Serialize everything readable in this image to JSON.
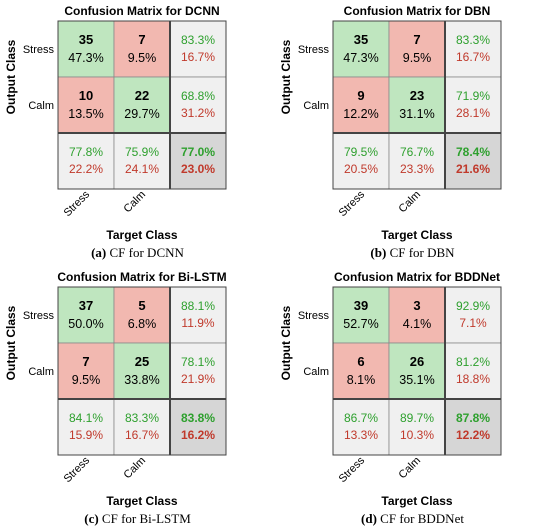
{
  "chart_data": [
    {
      "type": "heatmap",
      "title": "Confusion Matrix for DCNN",
      "xlabel": "Target Class",
      "ylabel": "Output Class",
      "classes": [
        "Stress",
        "Calm"
      ],
      "counts": [
        [
          35,
          7
        ],
        [
          10,
          22
        ]
      ],
      "percents": [
        [
          "47.3%",
          "9.5%"
        ],
        [
          "13.5%",
          "29.7%"
        ]
      ],
      "row_summary": [
        [
          "83.3%",
          "16.7%"
        ],
        [
          "68.8%",
          "31.2%"
        ]
      ],
      "col_summary": [
        [
          "77.8%",
          "22.2%"
        ],
        [
          "75.9%",
          "24.1%"
        ]
      ],
      "overall": [
        "77.0%",
        "23.0%"
      ],
      "caption_letter": "(a)",
      "caption_text": " CF for DCNN"
    },
    {
      "type": "heatmap",
      "title": "Confusion Matrix for DBN",
      "xlabel": "Target Class",
      "ylabel": "Output Class",
      "classes": [
        "Stress",
        "Calm"
      ],
      "counts": [
        [
          35,
          7
        ],
        [
          9,
          23
        ]
      ],
      "percents": [
        [
          "47.3%",
          "9.5%"
        ],
        [
          "12.2%",
          "31.1%"
        ]
      ],
      "row_summary": [
        [
          "83.3%",
          "16.7%"
        ],
        [
          "71.9%",
          "28.1%"
        ]
      ],
      "col_summary": [
        [
          "79.5%",
          "20.5%"
        ],
        [
          "76.7%",
          "23.3%"
        ]
      ],
      "overall": [
        "78.4%",
        "21.6%"
      ],
      "caption_letter": "(b)",
      "caption_text": " CF for DBN"
    },
    {
      "type": "heatmap",
      "title": "Confusion Matrix for Bi-LSTM",
      "xlabel": "Target Class",
      "ylabel": "Output Class",
      "classes": [
        "Stress",
        "Calm"
      ],
      "counts": [
        [
          37,
          5
        ],
        [
          7,
          25
        ]
      ],
      "percents": [
        [
          "50.0%",
          "6.8%"
        ],
        [
          "9.5%",
          "33.8%"
        ]
      ],
      "row_summary": [
        [
          "88.1%",
          "11.9%"
        ],
        [
          "78.1%",
          "21.9%"
        ]
      ],
      "col_summary": [
        [
          "84.1%",
          "15.9%"
        ],
        [
          "83.3%",
          "16.7%"
        ]
      ],
      "overall": [
        "83.8%",
        "16.2%"
      ],
      "caption_letter": "(c)",
      "caption_text": " CF for Bi-LSTM"
    },
    {
      "type": "heatmap",
      "title": "Confusion Matrix for BDDNet",
      "xlabel": "Target Class",
      "ylabel": "Output Class",
      "classes": [
        "Stress",
        "Calm"
      ],
      "counts": [
        [
          39,
          3
        ],
        [
          6,
          26
        ]
      ],
      "percents": [
        [
          "52.7%",
          "4.1%"
        ],
        [
          "8.1%",
          "35.1%"
        ]
      ],
      "row_summary": [
        [
          "92.9%",
          "7.1%"
        ],
        [
          "81.2%",
          "18.8%"
        ]
      ],
      "col_summary": [
        [
          "86.7%",
          "13.3%"
        ],
        [
          "89.7%",
          "10.3%"
        ]
      ],
      "overall": [
        "87.8%",
        "12.2%"
      ],
      "caption_letter": "(d)",
      "caption_text": " CF for BDDNet"
    }
  ],
  "colors": {
    "correct": "#bfe6bf",
    "wrong": "#f2b8b0",
    "summary": "#f0f0f0",
    "overall": "#d6d6d6",
    "green_text": "#2ea02e",
    "red_text": "#c0392b"
  }
}
